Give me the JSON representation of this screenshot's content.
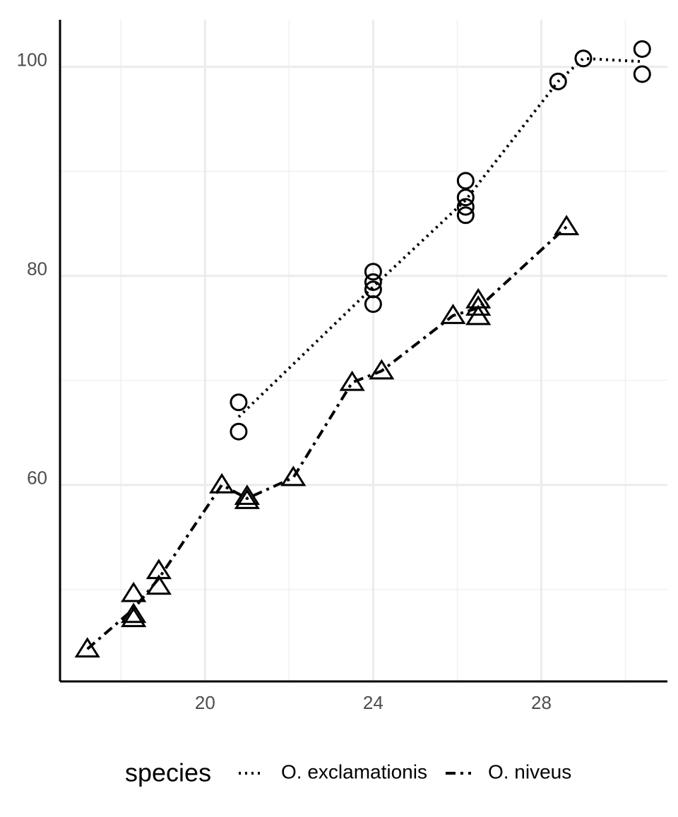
{
  "chart_data": {
    "type": "scatter",
    "legend_title": "species",
    "series": [
      {
        "name": "O. exclamationis",
        "color": "#000000",
        "shape": "circle",
        "linetype": "dotted",
        "x": [
          20.8,
          20.8,
          24.0,
          24.0,
          24.0,
          24.0,
          26.2,
          26.2,
          26.2,
          26.2,
          28.4,
          29.0,
          30.4,
          30.4
        ],
        "values": [
          67.9,
          65.1,
          77.3,
          78.7,
          79.4,
          80.4,
          85.8,
          86.6,
          87.5,
          89.1,
          98.6,
          100.8,
          99.3,
          101.7
        ]
      },
      {
        "name": "O. niveus",
        "color": "#000000",
        "shape": "triangle",
        "linetype": "dashdot",
        "x": [
          17.2,
          18.3,
          18.3,
          18.3,
          18.9,
          18.9,
          20.4,
          21.0,
          21.0,
          22.1,
          23.5,
          24.2,
          25.9,
          26.5,
          26.5,
          26.5,
          28.6
        ],
        "values": [
          44.3,
          47.2,
          47.6,
          49.6,
          50.3,
          51.8,
          60.0,
          58.5,
          58.9,
          60.7,
          69.8,
          70.9,
          76.2,
          76.1,
          77.0,
          77.7,
          84.7
        ]
      }
    ],
    "xlim": [
      16.55,
      31.0
    ],
    "ylim": [
      41.2,
      104.5
    ],
    "xticks": [
      20,
      24,
      28
    ],
    "yticks": [
      60,
      80,
      100
    ],
    "xminor": [
      18,
      22,
      26,
      30
    ],
    "yminor": [
      50,
      70,
      90
    ],
    "grid": true,
    "legend": "bottom"
  }
}
